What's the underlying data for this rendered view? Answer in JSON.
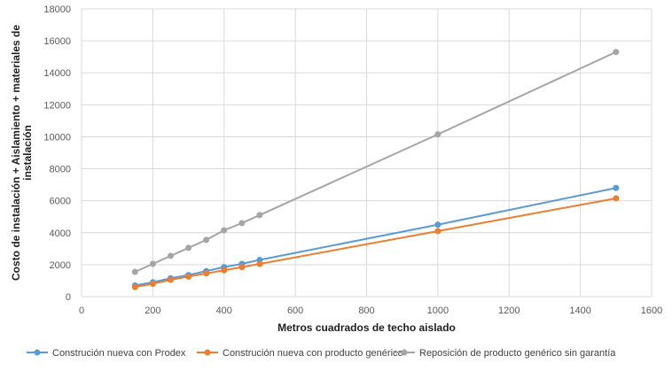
{
  "chart_data": {
    "type": "line",
    "title": "",
    "xlabel": "Metros cuadrados de techo aislado",
    "ylabel": "Costo de instalación + Aislamiento + materiales de instalación",
    "ylabel_lines": [
      "Costo de instalación + Aislamiento + materiales de",
      "instalación"
    ],
    "xlim": [
      0,
      1600
    ],
    "ylim": [
      0,
      18000
    ],
    "xticks": [
      0,
      200,
      400,
      600,
      800,
      1000,
      1200,
      1400,
      1600
    ],
    "yticks": [
      0,
      2000,
      4000,
      6000,
      8000,
      10000,
      12000,
      14000,
      16000,
      18000
    ],
    "grid": true,
    "legend": "bottom",
    "x": [
      150,
      200,
      250,
      300,
      350,
      400,
      450,
      500,
      1000,
      1500
    ],
    "series": [
      {
        "name": "Construción nueva con Prodex",
        "color": "#5B9BD5",
        "values": [
          700,
          900,
          1150,
          1350,
          1600,
          1850,
          2050,
          2300,
          4500,
          6800
        ]
      },
      {
        "name": "Construción nueva con producto genérico",
        "color": "#ED7D31",
        "values": [
          600,
          800,
          1050,
          1250,
          1450,
          1650,
          1850,
          2050,
          4100,
          6150
        ]
      },
      {
        "name": "Reposición de producto genérico sin garantía",
        "color": "#A5A5A5",
        "values": [
          1550,
          2050,
          2550,
          3050,
          3550,
          4150,
          4600,
          5100,
          10150,
          15300
        ]
      }
    ]
  }
}
